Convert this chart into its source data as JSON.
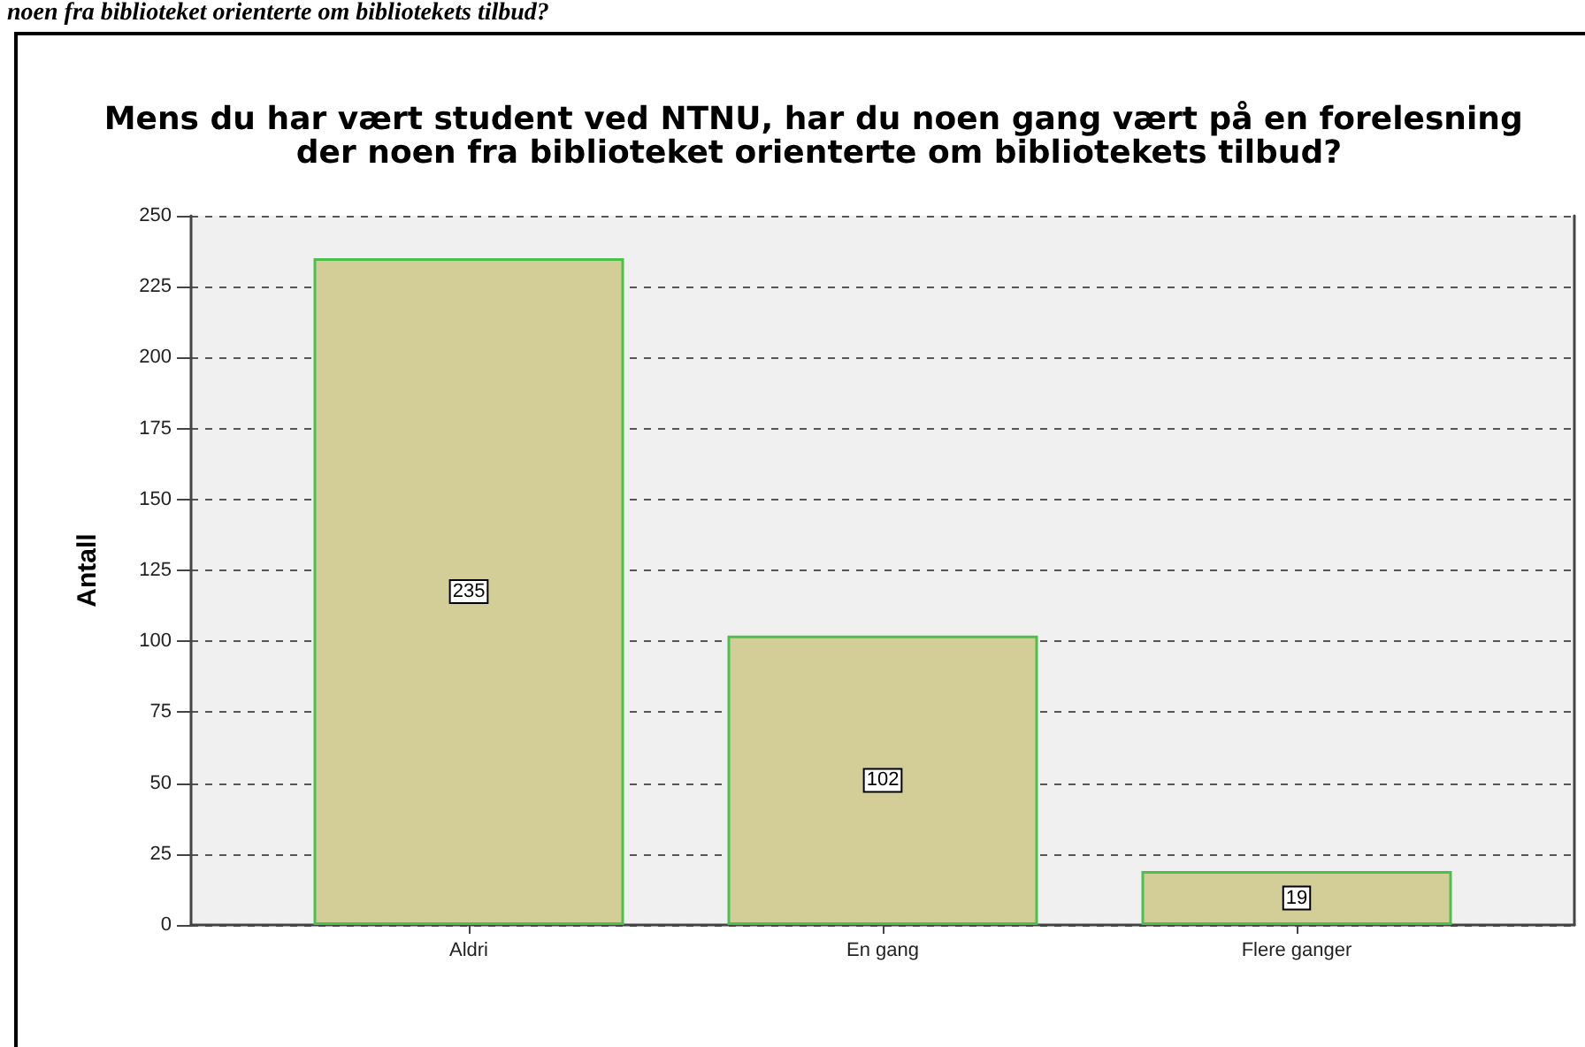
{
  "chart_data": {
    "type": "bar",
    "title": "Mens du har vært student ved NTNU, har du noen gang vært på en forelesning der noen fra biblioteket orienterte om bibliotekets tilbud?",
    "ylabel": "Antall",
    "categories": [
      "Aldri",
      "En gang",
      "Flere ganger"
    ],
    "values": [
      235,
      102,
      19
    ],
    "color": "#d3ce98",
    "ylim": [
      0,
      250
    ],
    "yticks": [
      0,
      25,
      50,
      75,
      100,
      125,
      150,
      175,
      200,
      225,
      250
    ],
    "grid": "y",
    "data_labels": true,
    "annotations": [
      "noen fra biblioteket orienterte om bibliotekets tilbud?"
    ]
  }
}
